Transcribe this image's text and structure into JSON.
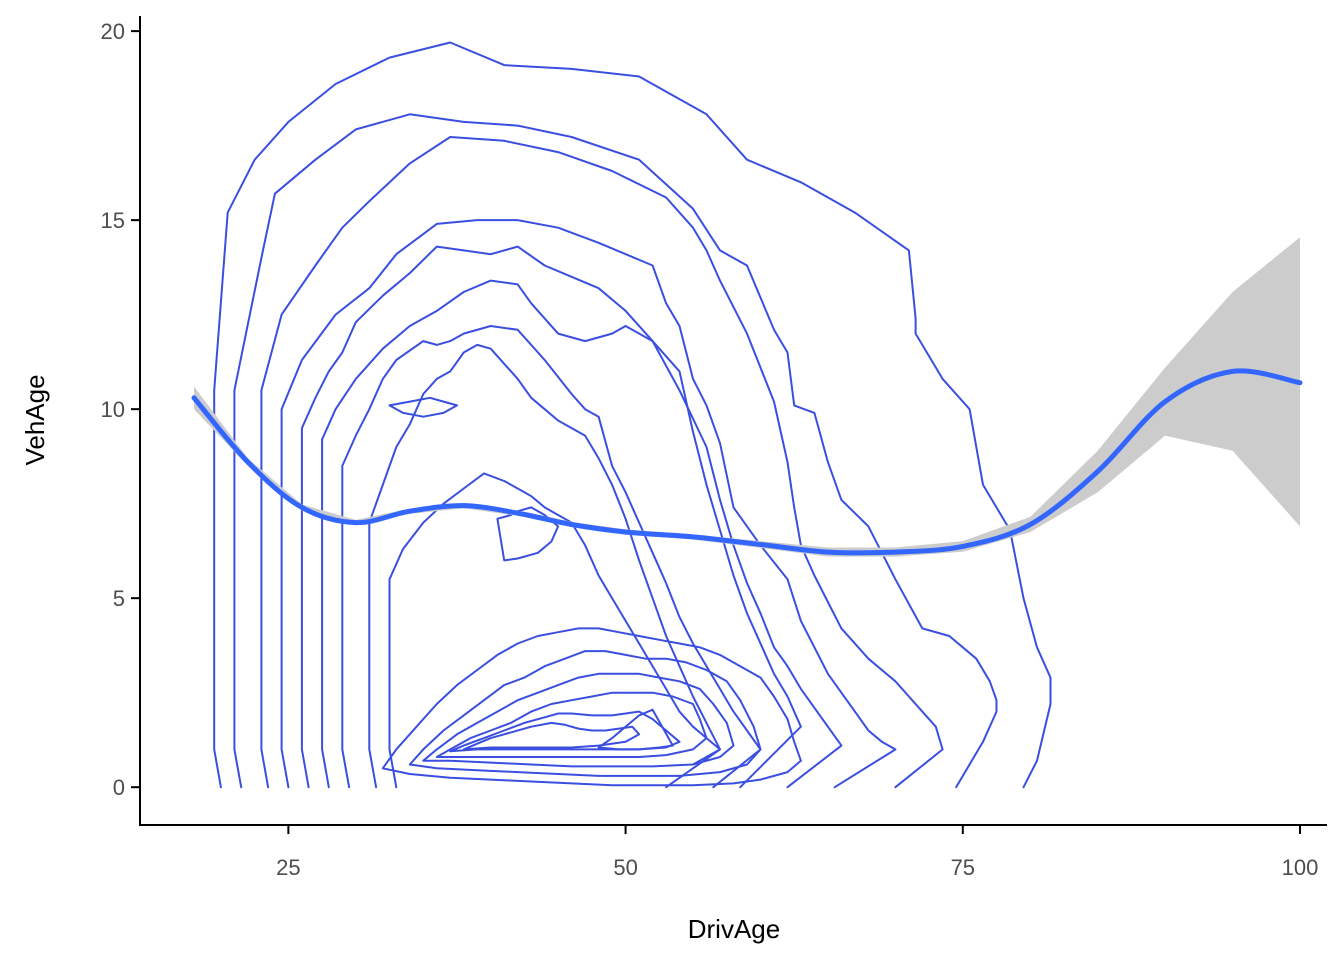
{
  "chart_data": {
    "type": "line",
    "xlabel": "DrivAge",
    "ylabel": "VehAge",
    "xlim": [
      14,
      102
    ],
    "ylim": [
      -1,
      20.4
    ],
    "x_ticks": [
      25,
      50,
      75,
      100
    ],
    "y_ticks": [
      0,
      5,
      10,
      15,
      20
    ],
    "grid": false,
    "legend": "none",
    "colors": {
      "contour": "#3A4FE0",
      "smooth": "#3366FF",
      "ribbon": "#CCCCCC"
    },
    "smooth": {
      "x": [
        18,
        22,
        26,
        30,
        34,
        38,
        42,
        46,
        50,
        55,
        60,
        65,
        70,
        75,
        80,
        85,
        90,
        95,
        100
      ],
      "y": [
        10.3,
        8.6,
        7.4,
        7.0,
        7.3,
        7.45,
        7.25,
        6.95,
        6.75,
        6.62,
        6.42,
        6.22,
        6.22,
        6.37,
        6.95,
        8.35,
        10.2,
        11.0,
        10.7
      ],
      "lower": [
        10.0,
        8.5,
        7.32,
        6.93,
        7.23,
        7.38,
        7.18,
        6.88,
        6.68,
        6.55,
        6.33,
        6.1,
        6.1,
        6.23,
        6.75,
        7.8,
        9.3,
        8.9,
        6.9
      ],
      "upper": [
        10.6,
        8.7,
        7.48,
        7.07,
        7.37,
        7.52,
        7.32,
        7.02,
        6.82,
        6.69,
        6.51,
        6.34,
        6.34,
        6.51,
        7.15,
        8.9,
        11.1,
        13.1,
        14.55
      ]
    },
    "contours": [
      {
        "x": [
          20,
          19.5,
          19.5,
          20.5,
          22.5,
          25,
          28.5,
          32.5,
          37,
          41,
          46,
          51,
          56,
          59,
          63,
          67,
          71,
          71.5,
          71.5,
          73.5,
          75.5,
          76.5,
          78.5,
          79.5,
          80.5,
          81.5,
          81.5,
          80.5,
          79.5
        ],
        "y": [
          0,
          1,
          10.5,
          15.2,
          16.6,
          17.6,
          18.6,
          19.3,
          19.7,
          19.1,
          19.0,
          18.8,
          17.8,
          16.6,
          16.0,
          15.2,
          14.2,
          12.4,
          12.0,
          10.8,
          10.0,
          8.0,
          6.8,
          5.0,
          3.7,
          2.9,
          2.2,
          0.7,
          0
        ]
      },
      {
        "x": [
          21.5,
          21,
          21,
          23,
          24,
          27,
          30,
          34,
          38,
          42,
          46,
          51,
          55,
          57,
          59,
          61,
          62,
          62.5,
          64,
          65,
          66,
          68,
          70,
          72,
          74,
          76,
          77,
          77.5,
          77.5,
          76.5,
          74.5
        ],
        "y": [
          0,
          1,
          10.5,
          14.0,
          15.7,
          16.6,
          17.4,
          17.8,
          17.6,
          17.5,
          17.2,
          16.6,
          15.3,
          14.2,
          13.8,
          12.1,
          11.5,
          10.1,
          9.9,
          8.6,
          7.6,
          6.9,
          5.5,
          4.2,
          4.0,
          3.4,
          2.8,
          2.3,
          2.0,
          1.2,
          0
        ]
      },
      {
        "x": [
          23.5,
          23,
          23,
          24.5,
          27,
          29,
          31,
          34,
          37,
          41,
          45,
          49,
          53,
          55,
          56,
          57,
          59,
          60,
          61,
          62,
          62.5,
          63,
          64,
          65,
          66,
          68,
          70,
          71,
          72,
          73,
          73.5,
          70
        ],
        "y": [
          0,
          1,
          10.5,
          12.5,
          13.8,
          14.8,
          15.5,
          16.5,
          17.2,
          17.1,
          16.8,
          16.3,
          15.6,
          14.8,
          14.2,
          13.4,
          12.0,
          11.1,
          10.2,
          8.6,
          7.4,
          6.4,
          5.6,
          4.9,
          4.2,
          3.4,
          2.8,
          2.4,
          2.0,
          1.6,
          1.0,
          0
        ]
      },
      {
        "x": [
          25,
          24.5,
          24.5,
          26,
          28.5,
          31,
          33,
          36,
          39,
          42,
          45,
          48,
          52,
          53,
          54,
          55,
          56,
          57,
          58,
          60,
          62,
          63,
          64,
          65,
          66,
          67,
          68,
          69,
          70,
          65.5
        ],
        "y": [
          0,
          1,
          10,
          11.3,
          12.5,
          13.2,
          14.1,
          14.9,
          15.0,
          15.0,
          14.8,
          14.4,
          13.8,
          12.8,
          12.2,
          10.8,
          10.1,
          9.1,
          7.4,
          6.4,
          5.5,
          4.4,
          3.7,
          3.0,
          2.5,
          2.0,
          1.5,
          1.2,
          1.0,
          0
        ]
      },
      {
        "x": [
          26.5,
          26,
          26,
          27,
          28,
          29,
          30,
          32,
          34,
          36,
          38,
          40,
          42,
          44,
          46,
          48,
          50,
          52,
          54,
          56,
          57,
          58,
          59,
          60,
          61,
          62,
          63,
          64,
          65,
          66,
          62
        ],
        "y": [
          0,
          1,
          9.5,
          10.3,
          11.0,
          11.5,
          12.3,
          13.0,
          13.6,
          14.3,
          14.2,
          14.1,
          14.3,
          13.8,
          13.5,
          13.2,
          12.6,
          11.8,
          10.5,
          9.0,
          7.6,
          6.4,
          5.4,
          4.6,
          3.7,
          3.2,
          2.6,
          2.1,
          1.6,
          1.1,
          0
        ]
      },
      {
        "x": [
          28,
          27.5,
          27.5,
          28.5,
          30,
          32,
          34,
          36,
          38,
          40,
          42,
          43,
          45,
          47,
          49,
          50,
          52,
          54,
          55,
          56,
          57,
          58,
          59,
          60,
          61,
          62,
          63,
          58.5
        ],
        "y": [
          0,
          1,
          9.2,
          10.0,
          10.8,
          11.6,
          12.2,
          12.6,
          13.1,
          13.4,
          13.3,
          12.8,
          12.0,
          11.8,
          12.0,
          12.2,
          11.8,
          11.0,
          9.4,
          8.0,
          6.8,
          5.6,
          4.6,
          3.8,
          3.0,
          2.4,
          1.6,
          0
        ]
      },
      {
        "x": [
          29.5,
          29,
          29,
          30,
          31,
          32,
          33,
          35,
          36,
          37,
          38,
          40,
          42,
          44,
          46,
          47,
          48,
          49,
          50,
          51,
          52,
          53,
          54,
          55,
          56,
          57,
          58,
          59,
          60,
          56.5
        ],
        "y": [
          0,
          1,
          8.5,
          9.3,
          10.0,
          10.8,
          11.3,
          11.8,
          11.7,
          11.8,
          12.0,
          12.2,
          12.1,
          11.3,
          10.4,
          10.0,
          9.8,
          8.5,
          7.8,
          7.0,
          6.2,
          5.4,
          4.5,
          3.8,
          3.2,
          2.6,
          2.0,
          1.5,
          1.0,
          0
        ]
      },
      {
        "x": [
          31.5,
          31,
          31,
          32,
          33,
          34,
          35,
          36,
          37,
          38,
          39,
          40,
          41,
          42,
          43,
          44,
          45,
          46,
          47,
          48,
          49,
          50,
          51,
          52,
          53,
          54,
          55,
          56,
          57,
          53
        ],
        "y": [
          0,
          1,
          7.0,
          8.0,
          9.0,
          9.6,
          10.4,
          10.8,
          11.0,
          11.5,
          11.7,
          11.6,
          11.2,
          10.8,
          10.3,
          10.0,
          9.7,
          9.5,
          9.3,
          8.7,
          8.0,
          7.1,
          6.0,
          5.0,
          4.0,
          3.2,
          2.4,
          1.7,
          1.0,
          0
        ]
      },
      {
        "x": [
          33,
          32.5,
          32.5,
          33.5,
          35,
          36.5,
          38,
          39.5,
          41,
          42,
          43,
          44,
          45,
          46,
          47,
          48,
          49,
          50,
          51,
          52,
          53,
          54,
          55,
          56,
          57,
          55
        ],
        "y": [
          0,
          1,
          5.5,
          6.3,
          7.0,
          7.5,
          7.9,
          8.3,
          8.1,
          7.9,
          7.7,
          7.4,
          7.2,
          7.0,
          6.4,
          5.6,
          5.0,
          4.4,
          3.8,
          3.2,
          2.6,
          2.0,
          1.6,
          1.3,
          1.0,
          0.6
        ]
      },
      {
        "x": [
          32,
          33,
          34.5,
          36,
          37.5,
          39,
          40.5,
          42,
          43.5,
          45,
          46.5,
          48,
          49.5,
          51,
          52.5,
          54,
          55.5,
          57,
          58.5,
          60,
          61,
          62,
          62.5,
          63,
          62,
          60,
          58,
          55,
          52,
          49,
          46,
          43,
          40,
          37,
          34,
          32
        ],
        "y": [
          0.5,
          1.0,
          1.6,
          2.2,
          2.7,
          3.1,
          3.5,
          3.8,
          4.0,
          4.1,
          4.2,
          4.2,
          4.1,
          4.0,
          3.9,
          3.8,
          3.7,
          3.5,
          3.2,
          2.9,
          2.4,
          1.8,
          1.2,
          0.7,
          0.4,
          0.2,
          0.1,
          0.05,
          0.05,
          0.05,
          0.1,
          0.15,
          0.2,
          0.25,
          0.35,
          0.5
        ]
      },
      {
        "x": [
          34,
          35,
          36.5,
          38,
          39.5,
          41,
          42.5,
          44,
          45.5,
          47,
          48.5,
          50,
          51.5,
          53,
          54.5,
          56,
          57.5,
          58.5,
          59.5,
          60,
          59,
          57,
          54,
          51,
          48,
          45,
          42,
          39,
          36,
          34
        ],
        "y": [
          0.6,
          1.0,
          1.5,
          1.9,
          2.3,
          2.7,
          2.9,
          3.2,
          3.4,
          3.6,
          3.6,
          3.5,
          3.4,
          3.4,
          3.3,
          3.1,
          2.8,
          2.3,
          1.6,
          1.0,
          0.6,
          0.4,
          0.3,
          0.3,
          0.3,
          0.35,
          0.4,
          0.45,
          0.5,
          0.6
        ]
      },
      {
        "x": [
          35,
          36,
          37.5,
          39,
          40.5,
          42,
          43.5,
          45,
          46.5,
          48,
          49.5,
          51,
          52.5,
          54,
          55.5,
          56.5,
          57.5,
          58,
          57,
          55,
          52,
          49,
          46,
          43,
          40,
          37,
          35
        ],
        "y": [
          0.7,
          1.0,
          1.4,
          1.7,
          2.0,
          2.3,
          2.5,
          2.7,
          2.9,
          3.0,
          3.0,
          3.0,
          2.9,
          2.8,
          2.6,
          2.2,
          1.7,
          1.1,
          0.8,
          0.6,
          0.55,
          0.55,
          0.55,
          0.6,
          0.65,
          0.7,
          0.7
        ]
      },
      {
        "x": [
          36,
          37,
          38.5,
          40,
          41.5,
          43,
          44.5,
          46,
          47.5,
          49,
          50.5,
          52,
          53.5,
          55,
          55.5,
          56,
          55,
          53,
          51,
          49,
          47,
          45,
          43,
          41,
          39,
          37,
          36
        ],
        "y": [
          0.8,
          1.0,
          1.3,
          1.5,
          1.7,
          2.0,
          2.2,
          2.3,
          2.4,
          2.5,
          2.5,
          2.5,
          2.4,
          2.2,
          1.8,
          1.3,
          1.0,
          0.85,
          0.8,
          0.8,
          0.8,
          0.8,
          0.8,
          0.8,
          0.8,
          0.8,
          0.8
        ]
      },
      {
        "x": [
          37,
          38,
          39.5,
          41,
          42.5,
          44,
          45,
          46,
          47.5,
          49,
          50,
          51,
          52,
          53,
          54,
          53,
          51,
          49,
          47,
          45,
          43,
          41,
          39,
          37
        ],
        "y": [
          0.95,
          1.1,
          1.3,
          1.5,
          1.7,
          1.85,
          1.95,
          1.95,
          1.9,
          1.9,
          1.95,
          2.0,
          1.8,
          1.5,
          1.2,
          1.05,
          1.0,
          1.0,
          1.0,
          1.0,
          1.0,
          1.0,
          1.0,
          0.95
        ]
      },
      {
        "x": [
          38,
          39,
          40,
          41.5,
          43,
          44.5,
          45.5,
          46.5,
          47.5,
          48.5,
          49.5,
          50.5,
          51,
          50,
          48,
          46,
          44,
          42,
          40,
          38
        ],
        "y": [
          1.0,
          1.15,
          1.3,
          1.45,
          1.6,
          1.7,
          1.65,
          1.55,
          1.5,
          1.5,
          1.55,
          1.6,
          1.4,
          1.2,
          1.1,
          1.05,
          1.05,
          1.05,
          1.05,
          1.0
        ]
      },
      {
        "x": [
          48,
          49,
          50,
          51,
          52,
          53.5,
          52.5,
          51,
          49.5,
          48
        ],
        "y": [
          1.05,
          1.3,
          1.6,
          1.9,
          2.05,
          1.1,
          1.05,
          1.0,
          1.0,
          1.05
        ]
      },
      {
        "x": [
          32.5,
          34,
          35.5,
          36.5,
          37.5,
          36.5,
          35,
          33.5,
          32.5
        ],
        "y": [
          10.1,
          10.2,
          10.3,
          10.2,
          10.1,
          9.9,
          9.8,
          9.9,
          10.1
        ]
      },
      {
        "x": [
          40.5,
          41.5,
          42,
          43,
          44,
          45,
          44.5,
          43.5,
          42,
          41,
          40.5
        ],
        "y": [
          7.1,
          7.2,
          7.3,
          7.4,
          7.2,
          6.9,
          6.5,
          6.2,
          6.05,
          6.0,
          7.1
        ]
      }
    ]
  }
}
